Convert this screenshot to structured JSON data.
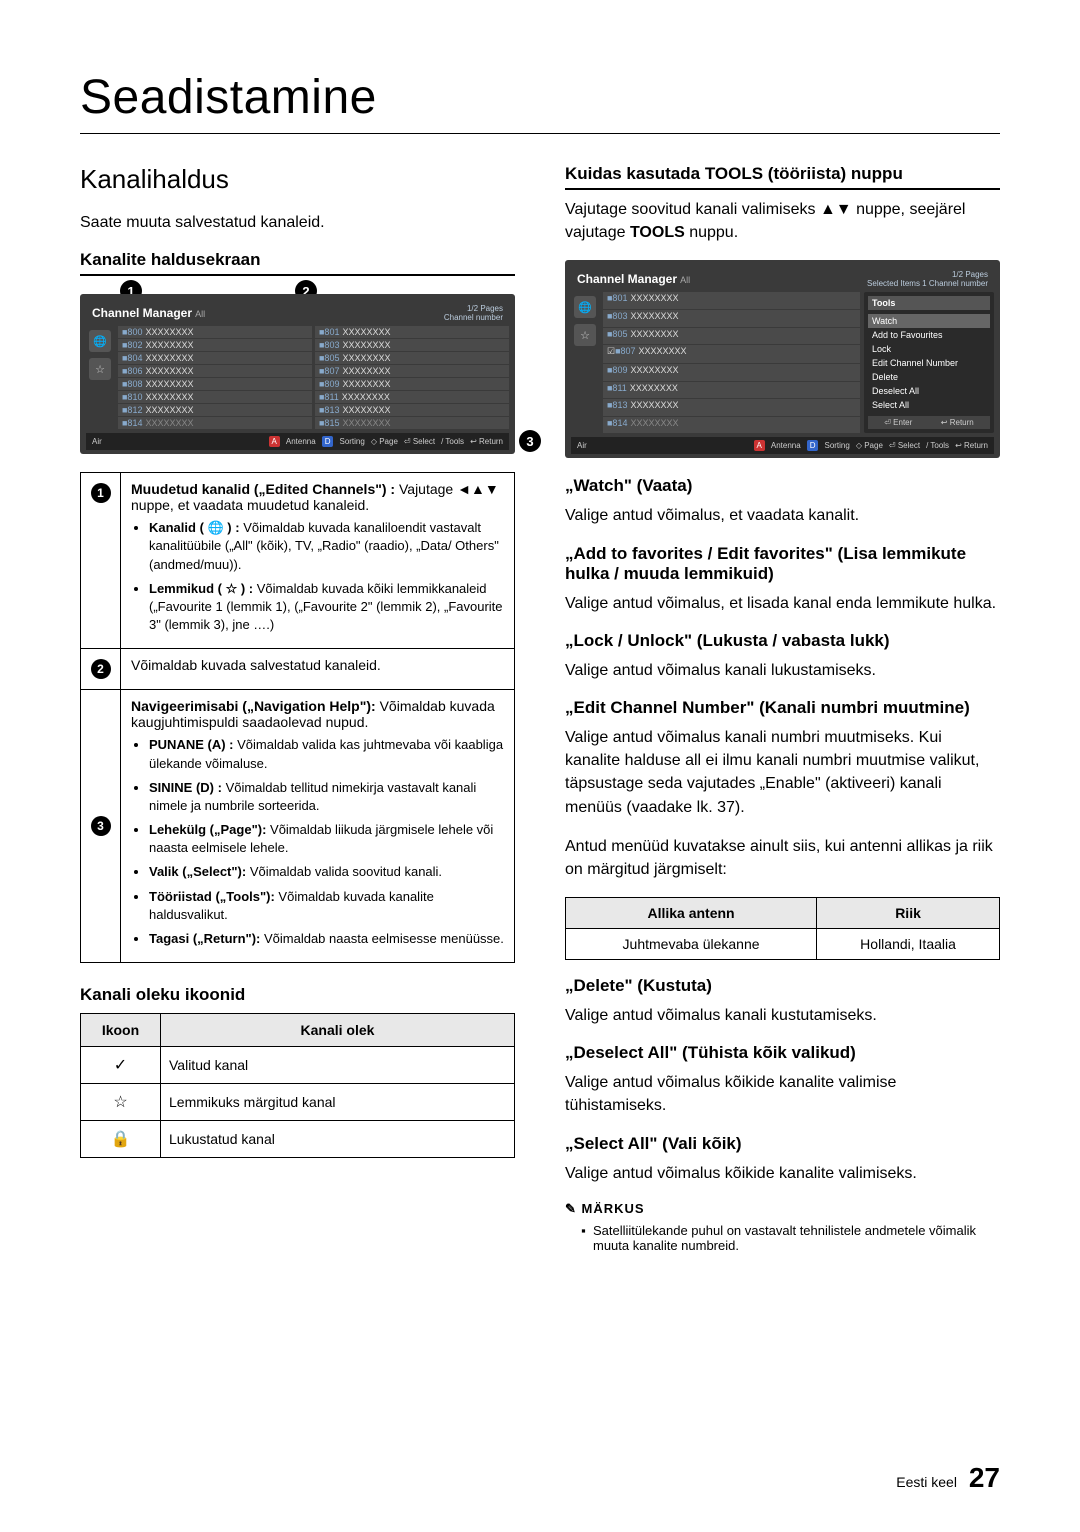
{
  "title": "Seadistamine",
  "left": {
    "section": "Kanalihaldus",
    "intro": "Saate muuta salvestatud kanaleid.",
    "screen_h": "Kanalite haldusekraan",
    "cm": {
      "title": "Channel Manager",
      "tag_all": "All",
      "pages": "1/2 Pages",
      "subhead": "Channel number",
      "rows_left": [
        {
          "n": "800",
          "t": "XXXXXXXX"
        },
        {
          "n": "802",
          "t": "XXXXXXXX"
        },
        {
          "n": "804",
          "t": "XXXXXXXX"
        },
        {
          "n": "806",
          "t": "XXXXXXXX"
        },
        {
          "n": "808",
          "t": "XXXXXXXX"
        },
        {
          "n": "810",
          "t": "XXXXXXXX"
        },
        {
          "n": "812",
          "t": "XXXXXXXX"
        },
        {
          "n": "814",
          "t": "XXXXXXXX"
        }
      ],
      "rows_right": [
        {
          "n": "801",
          "t": "XXXXXXXX"
        },
        {
          "n": "803",
          "t": "XXXXXXXX"
        },
        {
          "n": "805",
          "t": "XXXXXXXX"
        },
        {
          "n": "807",
          "t": "XXXXXXXX"
        },
        {
          "n": "809",
          "t": "XXXXXXXX"
        },
        {
          "n": "811",
          "t": "XXXXXXXX"
        },
        {
          "n": "813",
          "t": "XXXXXXXX"
        },
        {
          "n": "815",
          "t": "XXXXXXXX"
        }
      ],
      "foot": {
        "air": "Air",
        "a": "A",
        "antenna": "Antenna",
        "d": "D",
        "sorting": "Sorting",
        "page": "◇ Page",
        "select": "⏎ Select",
        "tools": "/  Tools",
        "return": "↩ Return"
      }
    },
    "legend": {
      "r1_head": "Muudetud kanalid („Edited Channels\") :",
      "r1_text": "Vajutage ◄▲▼ nuppe, et vaadata muudetud kanaleid.",
      "r1_b1_h": "Kanalid ( 🌐 ) :",
      "r1_b1_t": "Võimaldab kuvada kanaliloendit vastavalt kanalitüübile („All\" (kõik), TV, „Radio\" (raadio), „Data/ Others\" (andmed/muu)).",
      "r1_b2_h": "Lemmikud ( ☆ ) :",
      "r1_b2_t": "Võimaldab kuvada kõiki lemmikkanaleid („Favourite 1 (lemmik 1), („Favourite 2\" (lemmik 2), „Favourite 3\" (lemmik 3), jne ….)",
      "r2": "Võimaldab kuvada salvestatud kanaleid.",
      "r3_head": "Navigeerimisabi („Navigation Help\"):",
      "r3_text": "Võimaldab kuvada kaugjuhtimispuldi saadaolevad nupud.",
      "r3_items": [
        {
          "h": "PUNANE (A) :",
          "t": "Võimaldab valida kas juhtmevaba või kaabliga ülekande võimaluse."
        },
        {
          "h": "SININE (D) :",
          "t": "Võimaldab tellitud nimekirja vastavalt kanali nimele ja numbrile sorteerida."
        },
        {
          "h": "Lehekülg („Page\"):",
          "t": "Võimaldab liikuda järgmisele lehele või naasta eelmisele lehele."
        },
        {
          "h": "Valik („Select\"):",
          "t": "Võimaldab valida soovitud kanali."
        },
        {
          "h": "Tööriistad („Tools\"):",
          "t": "Võimaldab kuvada kanalite haldusvalikut."
        },
        {
          "h": "Tagasi („Return\"):",
          "t": "Võimaldab naasta eelmisesse menüüsse."
        }
      ]
    },
    "icon_h": "Kanali oleku ikoonid",
    "icon_th1": "Ikoon",
    "icon_th2": "Kanali olek",
    "icon_rows": [
      {
        "i": "✓",
        "t": "Valitud kanal"
      },
      {
        "i": "☆",
        "t": "Lemmikuks märgitud kanal"
      },
      {
        "i": "🔒",
        "t": "Lukustatud kanal"
      }
    ]
  },
  "right": {
    "tools_h": "Kuidas kasutada TOOLS (tööriista) nuppu",
    "intro1": "Vajutage soovitud kanali valimiseks ▲▼ nuppe, seejärel vajutage ",
    "intro1b": "TOOLS",
    "intro1c": " nuppu.",
    "cm2": {
      "title": "Channel Manager",
      "tag_all": "All",
      "pages": "1/2 Pages",
      "sel": "Selected Items 1  Channel number",
      "rows": [
        {
          "n": "801",
          "t": "XXXXXXXX"
        },
        {
          "n": "803",
          "t": "XXXXXXXX"
        },
        {
          "n": "805",
          "t": "XXXXXXXX"
        },
        {
          "n": "807",
          "t": "XXXXXXXX"
        },
        {
          "n": "809",
          "t": "XXXXXXXX"
        },
        {
          "n": "811",
          "t": "XXXXXXXX"
        },
        {
          "n": "813",
          "t": "XXXXXXXX"
        },
        {
          "n": "814",
          "t": "XXXXXXXX"
        }
      ],
      "tools_h": "Tools",
      "tools_items": [
        "Watch",
        "Add to Favourites",
        "Lock",
        "Edit Channel Number",
        "Delete",
        "Deselect All",
        "Select All"
      ],
      "tools_foot": {
        "enter": "⏎ Enter",
        "return": "↩ Return"
      }
    },
    "watch_h": "„Watch\" (Vaata)",
    "watch_t": "Valige antud võimalus, et vaadata kanalit.",
    "fav_h": "„Add to favorites / Edit favorites\" (Lisa lemmikute hulka / muuda lemmikuid)",
    "fav_t": "Valige antud võimalus, et lisada kanal enda lemmikute hulka.",
    "lock_h": "„Lock / Unlock\" (Lukusta / vabasta lukk)",
    "lock_t": "Valige antud võimalus kanali lukustamiseks.",
    "edit_h": "„Edit Channel Number\" (Kanali numbri muutmine)",
    "edit_t": "Valige antud võimalus kanali numbri muutmiseks. Kui kanalite halduse all ei ilmu kanali numbri muutmise valikut, täpsustage seda vajutades „Enable\" (aktiveeri) kanali menüüs (vaadake lk. 37).",
    "edit_note": "Antud menüüd kuvatakse ainult siis, kui antenni allikas ja riik on märgitud järgmiselt:",
    "table": {
      "th1": "Allika antenn",
      "th2": "Riik",
      "td1": "Juhtmevaba ülekanne",
      "td2": "Hollandi, Itaalia"
    },
    "del_h": "„Delete\" (Kustuta)",
    "del_t": "Valige antud võimalus kanali kustutamiseks.",
    "des_h": "„Deselect All\" (Tühista kõik valikud)",
    "des_t": "Valige antud võimalus kõikide kanalite valimise tühistamiseks.",
    "sel_h": "„Select All\" (Vali kõik)",
    "sel_t": "Valige antud võimalus kõikide kanalite valimiseks.",
    "note_h": "MÄRKUS",
    "note_t": "Satelliitülekande puhul on vastavalt  tehnilistele andmetele võimalik muuta kanalite numbreid."
  },
  "footer": {
    "lang": "Eesti keel",
    "page": "27"
  }
}
